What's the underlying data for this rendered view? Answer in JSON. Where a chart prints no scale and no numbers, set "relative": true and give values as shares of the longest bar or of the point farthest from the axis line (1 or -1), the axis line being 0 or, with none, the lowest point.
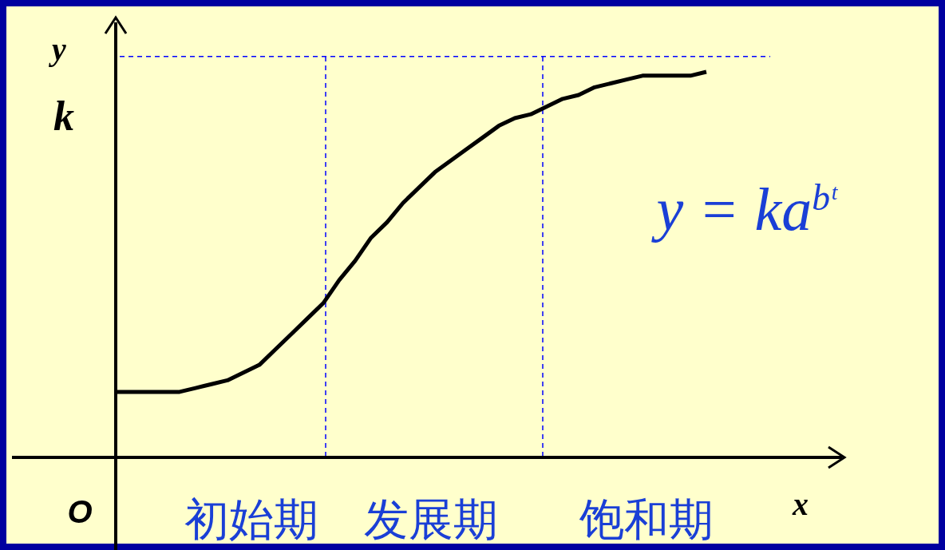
{
  "chart_data": {
    "type": "line",
    "relative": true,
    "xlabel": "x",
    "ylabel": "y",
    "categories": [
      null,
      null,
      null,
      null,
      null,
      null,
      null,
      null,
      null,
      null,
      null,
      null,
      null,
      null,
      null,
      null,
      null,
      null,
      null,
      null,
      null,
      null,
      null,
      null,
      null,
      null,
      null,
      null,
      null,
      null,
      null,
      null,
      null,
      null,
      null,
      null,
      null,
      null
    ],
    "series": [
      {
        "color": "#000000",
        "values": [
          0.17,
          0.17,
          0.17,
          0.17,
          0.17,
          0.18,
          0.19,
          0.2,
          0.22,
          0.24,
          0.28,
          0.32,
          0.36,
          0.4,
          0.46,
          0.51,
          0.57,
          0.61,
          0.66,
          0.7,
          0.74,
          0.77,
          0.8,
          0.83,
          0.86,
          0.88,
          0.89,
          0.91,
          0.93,
          0.94,
          0.96,
          0.97,
          0.98,
          0.99,
          0.99,
          0.99,
          0.99,
          1
        ]
      }
    ],
    "ref_lines": [
      {
        "axis": "y",
        "value": 1.04,
        "label": "k",
        "color": "#0000ff",
        "line_style": "dashed"
      }
    ],
    "annotations": [
      "O",
      "初始期",
      "发展期",
      "饱和期",
      "y = ka$^{bᵗ}$"
    ],
    "marker": "none",
    "line_style": "solid"
  }
}
